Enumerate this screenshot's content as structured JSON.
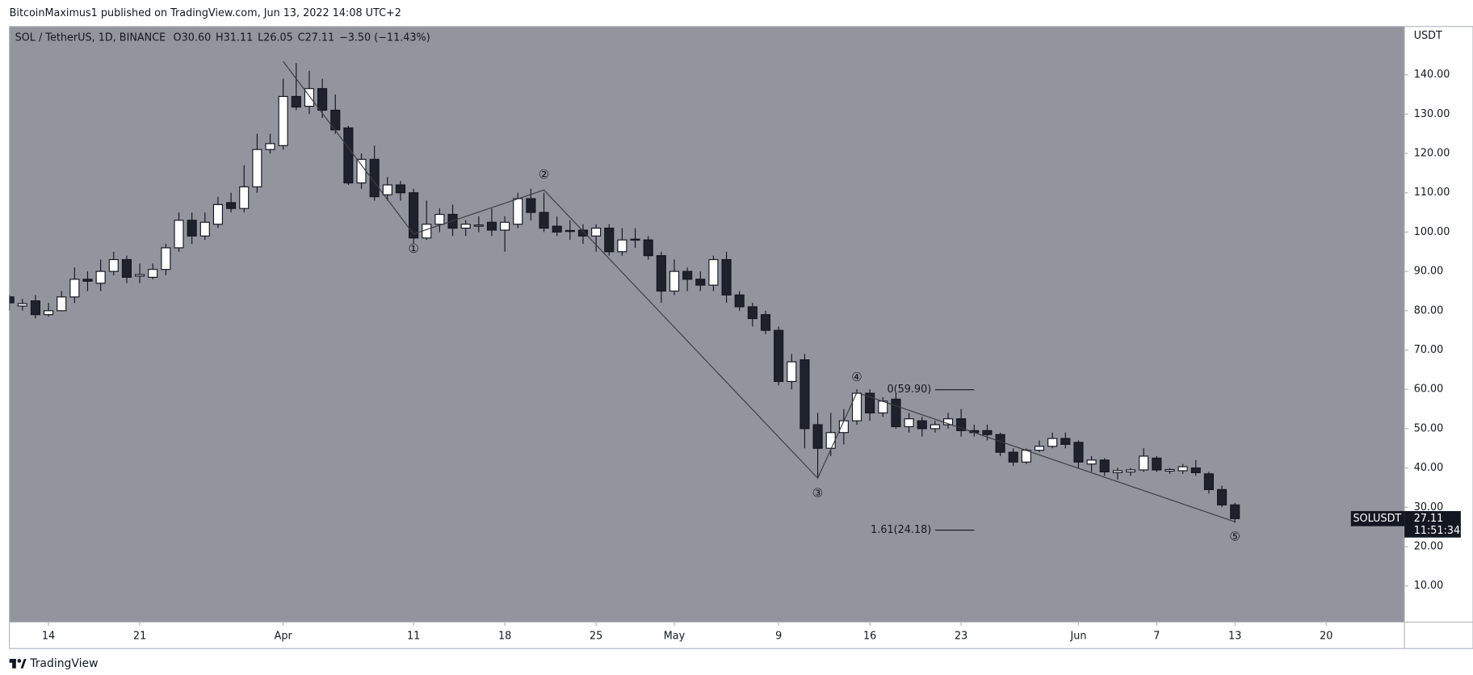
{
  "header": "BitcoinMaximus1 published on TradingView.com, Jun 13, 2022 14:08 UTC+2",
  "footer": "TradingView",
  "chart_data": {
    "type": "candlestick",
    "title": "SOL / TetherUS, 1D, BINANCE",
    "legend_items": [
      "O30.60",
      "H31.11",
      "L26.05",
      "C27.11",
      "−3.50 (−11.43%)"
    ],
    "currency": "USDT",
    "x": [
      "Mar 11",
      "Mar 12",
      "Mar 13",
      "Mar 14",
      "Mar 15",
      "Mar 16",
      "Mar 17",
      "Mar 18",
      "Mar 19",
      "Mar 20",
      "Mar 21",
      "Mar 22",
      "Mar 23",
      "Mar 24",
      "Mar 25",
      "Mar 26",
      "Mar 27",
      "Mar 28",
      "Mar 29",
      "Mar 30",
      "Mar 31",
      "Apr 1",
      "Apr 2",
      "Apr 3",
      "Apr 4",
      "Apr 5",
      "Apr 6",
      "Apr 7",
      "Apr 8",
      "Apr 9",
      "Apr 10",
      "Apr 11",
      "Apr 12",
      "Apr 13",
      "Apr 14",
      "Apr 15",
      "Apr 16",
      "Apr 17",
      "Apr 18",
      "Apr 19",
      "Apr 20",
      "Apr 21",
      "Apr 22",
      "Apr 23",
      "Apr 24",
      "Apr 25",
      "Apr 26",
      "Apr 27",
      "Apr 28",
      "Apr 29",
      "Apr 30",
      "May 1",
      "May 2",
      "May 3",
      "May 4",
      "May 5",
      "May 6",
      "May 7",
      "May 8",
      "May 9",
      "May 10",
      "May 11",
      "May 12",
      "May 13",
      "May 14",
      "May 15",
      "May 16",
      "May 17",
      "May 18",
      "May 19",
      "May 20",
      "May 21",
      "May 22",
      "May 23",
      "May 24",
      "May 25",
      "May 26",
      "May 27",
      "May 28",
      "May 29",
      "May 30",
      "May 31",
      "Jun 1",
      "Jun 2",
      "Jun 3",
      "Jun 4",
      "Jun 5",
      "Jun 6",
      "Jun 7",
      "Jun 8",
      "Jun 9",
      "Jun 10",
      "Jun 11",
      "Jun 12",
      "Jun 13"
    ],
    "open": [
      83.5,
      81.2,
      82.5,
      79,
      80,
      83.5,
      88,
      87,
      90,
      93,
      88.8,
      88.5,
      90.5,
      96,
      103,
      99,
      102,
      107.5,
      106,
      111.5,
      121,
      122,
      134.5,
      132,
      136.5,
      131,
      126.5,
      112.5,
      118.5,
      109.5,
      112,
      110,
      98.5,
      102,
      104.5,
      101,
      101.5,
      102.5,
      100.5,
      102,
      108.5,
      105,
      101.5,
      100.2,
      100.5,
      99,
      101,
      95,
      98.2,
      98,
      94,
      85,
      90,
      88,
      86.5,
      93,
      84,
      81,
      79,
      75,
      62,
      67.5,
      51,
      45,
      49,
      52,
      59,
      54,
      57.5,
      50.5,
      52,
      50,
      51,
      52.5,
      49.5,
      49.5,
      48.5,
      44,
      41.5,
      44.5,
      45.5,
      47.5,
      46.5,
      41,
      42,
      38.8,
      39,
      39.5,
      42.5,
      39.2,
      39.3,
      40,
      38.5,
      34.5,
      30.6
    ],
    "high": [
      84,
      83,
      84,
      82,
      85,
      91,
      90,
      93,
      95,
      94,
      92,
      92,
      97,
      105,
      105,
      105,
      109,
      110,
      117,
      125,
      125,
      139,
      143,
      141,
      139,
      135,
      127,
      120,
      122,
      114,
      113,
      111,
      108,
      106,
      107,
      103,
      104,
      106,
      104,
      110,
      111,
      110,
      104,
      103,
      102,
      102,
      102,
      101,
      101,
      99,
      95,
      93,
      91,
      90,
      94,
      95,
      85,
      82,
      80,
      76,
      69,
      69,
      54,
      54,
      55,
      60,
      60,
      58,
      59,
      54,
      53,
      52,
      54,
      55,
      51,
      51,
      49,
      45,
      45,
      47,
      49,
      49,
      47,
      43,
      42.5,
      40,
      40,
      45,
      43,
      40,
      41,
      42,
      39,
      35.5,
      31.11
    ],
    "low": [
      80,
      80,
      78,
      78.5,
      80,
      82,
      85,
      85,
      89,
      87,
      87,
      88,
      89,
      95,
      97,
      98,
      101,
      105,
      105,
      110,
      120,
      121,
      131,
      130,
      129,
      125,
      112,
      111,
      108,
      108,
      108,
      97,
      98,
      100,
      99,
      99,
      100,
      99,
      95,
      101,
      103,
      100,
      99,
      98,
      97,
      95,
      94,
      94,
      96,
      93,
      82,
      84,
      85,
      85,
      85,
      82,
      80,
      76,
      74,
      61,
      60,
      45,
      37.5,
      43,
      46,
      51,
      52,
      53,
      50,
      49,
      48,
      49,
      50,
      48,
      48,
      47,
      43,
      40.5,
      41,
      44,
      45,
      45,
      40,
      39,
      38,
      37,
      38,
      39,
      39,
      38.5,
      38.5,
      38,
      33.5,
      30,
      26.05
    ],
    "close": [
      82,
      81.8,
      79,
      80,
      83.5,
      88,
      87.5,
      90,
      93,
      88.5,
      89.2,
      90.5,
      96,
      103,
      99,
      102.5,
      107,
      106,
      111.5,
      121,
      122.5,
      134.5,
      131.8,
      136.5,
      131,
      126,
      112.5,
      118.5,
      109,
      112,
      110,
      98.5,
      102,
      104.5,
      101,
      102,
      101.8,
      100.5,
      102.5,
      108.5,
      105,
      101,
      100,
      100.4,
      99,
      101,
      95,
      98,
      98,
      94,
      85,
      90,
      88,
      86.5,
      93,
      84,
      81,
      78,
      75,
      62,
      67,
      50,
      45,
      49,
      52,
      59,
      54,
      57,
      50.5,
      52.5,
      50,
      51,
      52.5,
      49.5,
      49,
      48.5,
      44,
      41.5,
      44.5,
      45.5,
      47.5,
      46,
      41.5,
      42,
      39,
      39.3,
      39.5,
      43,
      39.5,
      39.6,
      40.3,
      38.8,
      34.5,
      30.6,
      27.11
    ],
    "up_color": "#ffffff",
    "down_color": "#1e222d",
    "wick_color": "#131722",
    "xlim": [
      "Mar 11",
      "Jun 26"
    ],
    "xticks": [
      {
        "value": "Mar 14",
        "label": "14"
      },
      {
        "value": "Mar 21",
        "label": "21"
      },
      {
        "value": "Apr 1",
        "label": "Apr"
      },
      {
        "value": "Apr 11",
        "label": "11"
      },
      {
        "value": "Apr 18",
        "label": "18"
      },
      {
        "value": "Apr 25",
        "label": "25"
      },
      {
        "value": "May 1",
        "label": "May"
      },
      {
        "value": "May 9",
        "label": "9"
      },
      {
        "value": "May 16",
        "label": "16"
      },
      {
        "value": "May 23",
        "label": "23"
      },
      {
        "value": "Jun 1",
        "label": "Jun"
      },
      {
        "value": "Jun 7",
        "label": "7"
      },
      {
        "value": "Jun 13",
        "label": "13"
      },
      {
        "value": "Jun 20",
        "label": "20"
      }
    ],
    "ylim": [
      0.8,
      152.3
    ],
    "yticks": [
      {
        "value": 10,
        "label": "10.00"
      },
      {
        "value": 20,
        "label": "20.00"
      },
      {
        "value": 30,
        "label": "30.00"
      },
      {
        "value": 40,
        "label": "40.00"
      },
      {
        "value": 50,
        "label": "50.00"
      },
      {
        "value": 60,
        "label": "60.00"
      },
      {
        "value": 70,
        "label": "70.00"
      },
      {
        "value": 80,
        "label": "80.00"
      },
      {
        "value": 90,
        "label": "90.00"
      },
      {
        "value": 100,
        "label": "100.00"
      },
      {
        "value": 110,
        "label": "110.00"
      },
      {
        "value": 120,
        "label": "120.00"
      },
      {
        "value": 130,
        "label": "130.00"
      },
      {
        "value": 140,
        "label": "140.00"
      }
    ],
    "wave_start": {
      "x": "Apr 1",
      "value": 143.4
    },
    "waves": [
      {
        "label": "①",
        "x": "Apr 11",
        "value": 99.5
      },
      {
        "label": "②",
        "x": "Apr 21",
        "value": 110.7
      },
      {
        "label": "③",
        "x": "May 12",
        "value": 37.4
      },
      {
        "label": "④",
        "x": "May 15",
        "value": 59.2
      },
      {
        "label": "⑤",
        "x": "Jun 13",
        "value": 26.3
      }
    ],
    "fib_levels": [
      {
        "value": 59.9,
        "label": "0(59.90)",
        "x": [
          "May 21",
          "May 24"
        ]
      },
      {
        "value": 24.18,
        "label": "1.61(24.18)",
        "x": [
          "May 21",
          "May 24"
        ]
      }
    ],
    "last_price": {
      "symbol": "SOLUSDT",
      "value": 27.11,
      "label": "27.11",
      "countdown": "11:51:34"
    }
  }
}
